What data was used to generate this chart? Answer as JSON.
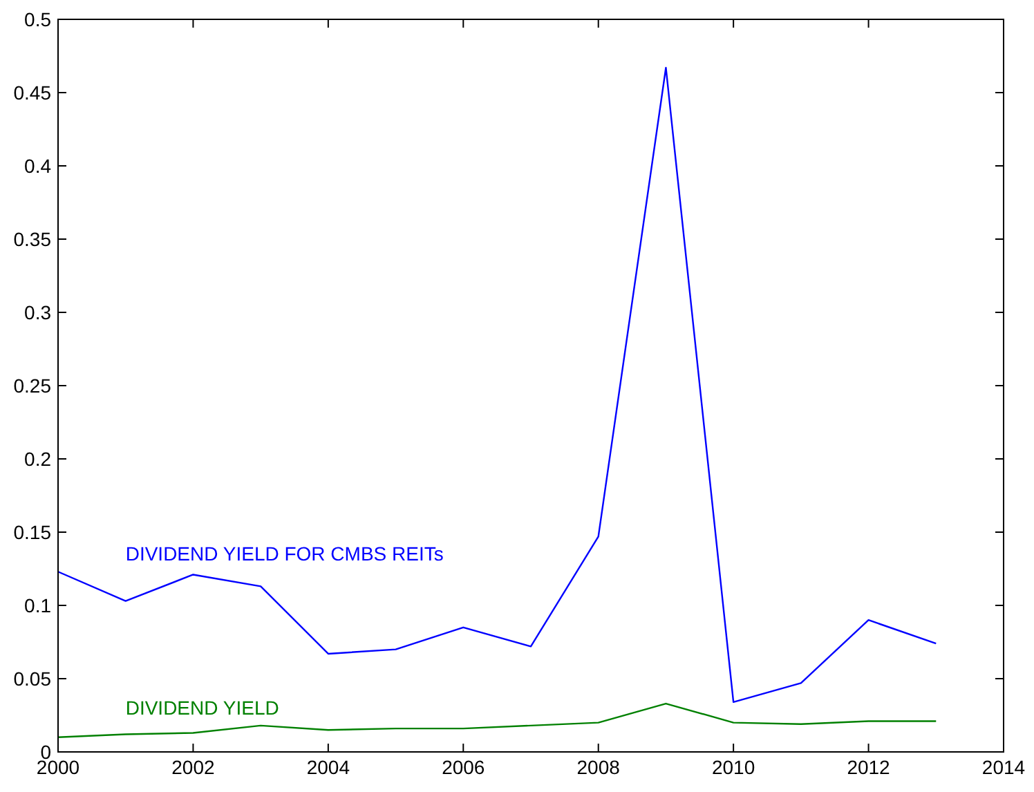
{
  "chart_data": {
    "type": "line",
    "x": [
      2000,
      2001,
      2002,
      2003,
      2004,
      2005,
      2006,
      2007,
      2008,
      2009,
      2010,
      2011,
      2012,
      2013
    ],
    "series": [
      {
        "name": "DIVIDEND YIELD FOR CMBS REITs",
        "color": "#0000ff",
        "values": [
          0.123,
          0.103,
          0.121,
          0.113,
          0.067,
          0.07,
          0.085,
          0.072,
          0.147,
          0.467,
          0.034,
          0.047,
          0.09,
          0.074
        ]
      },
      {
        "name": "DIVIDEND YIELD",
        "color": "#008000",
        "values": [
          0.01,
          0.012,
          0.013,
          0.018,
          0.015,
          0.016,
          0.016,
          0.018,
          0.02,
          0.033,
          0.02,
          0.019,
          0.021,
          0.021
        ]
      }
    ],
    "xlim": [
      2000,
      2014
    ],
    "xticks": [
      2000,
      2002,
      2004,
      2006,
      2008,
      2010,
      2012,
      2014
    ],
    "ylim": [
      0,
      0.5
    ],
    "yticks": [
      0,
      0.05,
      0.1,
      0.15,
      0.2,
      0.25,
      0.3,
      0.35,
      0.4,
      0.45,
      0.5
    ],
    "grid": false,
    "marker": "none",
    "line_style": "solid"
  }
}
